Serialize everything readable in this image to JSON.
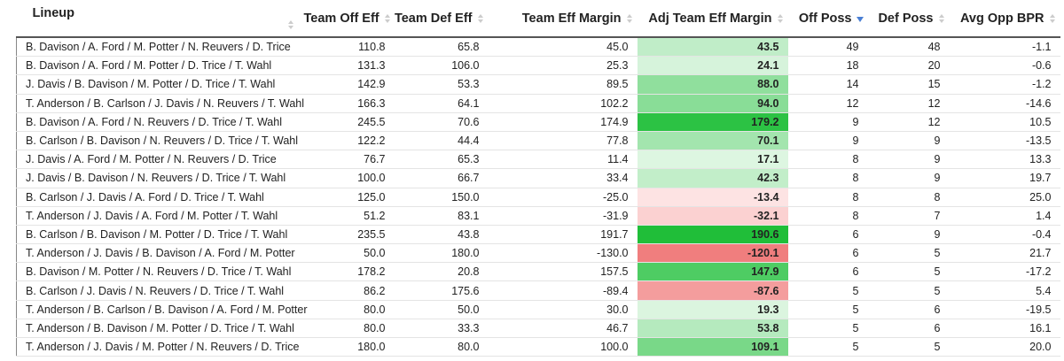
{
  "table": {
    "columns": [
      "Lineup",
      "Team Off Eff",
      "Team Def Eff",
      "Team Eff Margin",
      "Adj Team Eff Margin",
      "Off Poss",
      "Def Poss",
      "Avg Opp BPR"
    ],
    "rows": [
      [
        "B. Davison / A. Ford / M. Potter / N. Reuvers / D. Trice",
        "110.8",
        "65.8",
        "45.0",
        "43.5",
        "49",
        "48",
        "-1.1"
      ],
      [
        "B. Davison / A. Ford / M. Potter / D. Trice / T. Wahl",
        "131.3",
        "106.0",
        "25.3",
        "24.1",
        "18",
        "20",
        "-0.6"
      ],
      [
        "J. Davis / B. Davison / M. Potter / D. Trice / T. Wahl",
        "142.9",
        "53.3",
        "89.5",
        "88.0",
        "14",
        "15",
        "-1.2"
      ],
      [
        "T. Anderson / B. Carlson / J. Davis / N. Reuvers / T. Wahl",
        "166.3",
        "64.1",
        "102.2",
        "94.0",
        "12",
        "12",
        "-14.6"
      ],
      [
        "B. Davison / A. Ford / N. Reuvers / D. Trice / T. Wahl",
        "245.5",
        "70.6",
        "174.9",
        "179.2",
        "9",
        "12",
        "10.5"
      ],
      [
        "B. Carlson / B. Davison / N. Reuvers / D. Trice / T. Wahl",
        "122.2",
        "44.4",
        "77.8",
        "70.1",
        "9",
        "9",
        "-13.5"
      ],
      [
        "J. Davis / A. Ford / M. Potter / N. Reuvers / D. Trice",
        "76.7",
        "65.3",
        "11.4",
        "17.1",
        "8",
        "9",
        "13.3"
      ],
      [
        "J. Davis / B. Davison / N. Reuvers / D. Trice / T. Wahl",
        "100.0",
        "66.7",
        "33.4",
        "42.3",
        "8",
        "9",
        "19.7"
      ],
      [
        "B. Carlson / J. Davis / A. Ford / D. Trice / T. Wahl",
        "125.0",
        "150.0",
        "-25.0",
        "-13.4",
        "8",
        "8",
        "25.0"
      ],
      [
        "T. Anderson / J. Davis / A. Ford / M. Potter / T. Wahl",
        "51.2",
        "83.1",
        "-31.9",
        "-32.1",
        "8",
        "7",
        "1.4"
      ],
      [
        "B. Carlson / B. Davison / M. Potter / D. Trice / T. Wahl",
        "235.5",
        "43.8",
        "191.7",
        "190.6",
        "6",
        "9",
        "-0.4"
      ],
      [
        "T. Anderson / J. Davis / B. Davison / A. Ford / M. Potter",
        "50.0",
        "180.0",
        "-130.0",
        "-120.1",
        "6",
        "5",
        "21.7"
      ],
      [
        "B. Davison / M. Potter / N. Reuvers / D. Trice / T. Wahl",
        "178.2",
        "20.8",
        "157.5",
        "147.9",
        "6",
        "5",
        "-17.2"
      ],
      [
        "B. Carlson / J. Davis / N. Reuvers / D. Trice / T. Wahl",
        "86.2",
        "175.6",
        "-89.4",
        "-87.6",
        "5",
        "5",
        "5.4"
      ],
      [
        "T. Anderson / B. Carlson / B. Davison / A. Ford / M. Potter",
        "80.0",
        "50.0",
        "30.0",
        "19.3",
        "5",
        "6",
        "-19.5"
      ],
      [
        "T. Anderson / B. Davison / M. Potter / D. Trice / T. Wahl",
        "80.0",
        "33.3",
        "46.7",
        "53.8",
        "5",
        "6",
        "16.1"
      ],
      [
        "T. Anderson / J. Davis / M. Potter / N. Reuvers / D. Trice",
        "180.0",
        "80.0",
        "100.0",
        "109.1",
        "5",
        "5",
        "20.0"
      ]
    ]
  }
}
